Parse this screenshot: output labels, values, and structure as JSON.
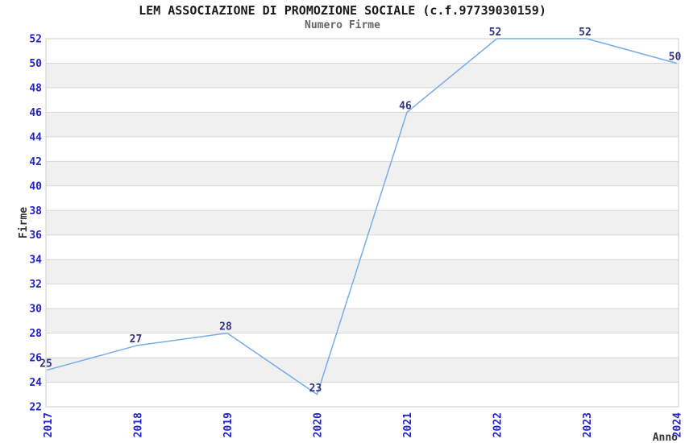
{
  "chart_data": {
    "type": "line",
    "title": "LEM ASSOCIAZIONE DI PROMOZIONE SOCIALE (c.f.97739030159)",
    "subtitle": "Numero Firme",
    "xlabel": "Anno",
    "ylabel": "Firme",
    "categories": [
      "2017",
      "2018",
      "2019",
      "2020",
      "2021",
      "2022",
      "2023",
      "2024"
    ],
    "values": [
      25,
      27,
      28,
      23,
      46,
      52,
      52,
      50
    ],
    "point_labels": [
      "25",
      "27",
      "28",
      "23",
      "46",
      "52",
      "52",
      "50"
    ],
    "ylim": [
      22,
      52
    ],
    "ytick_step": 2,
    "yticks": [
      22,
      24,
      26,
      28,
      30,
      32,
      34,
      36,
      38,
      40,
      42,
      44,
      46,
      48,
      50,
      52
    ],
    "grid": "horizontal-bands-alternating",
    "legend": "none",
    "markers": "none",
    "colors": {
      "line": "#76ade9",
      "tick_label": "#2222cc",
      "point_label": "#333380",
      "band_fill": "#f0f0f0",
      "gridline": "#d8d8d8",
      "plot_border": "#cccccc",
      "title": "#1a1a1a",
      "subtitle": "#666666",
      "axis_label": "#333333",
      "background": "#ffffff"
    }
  }
}
